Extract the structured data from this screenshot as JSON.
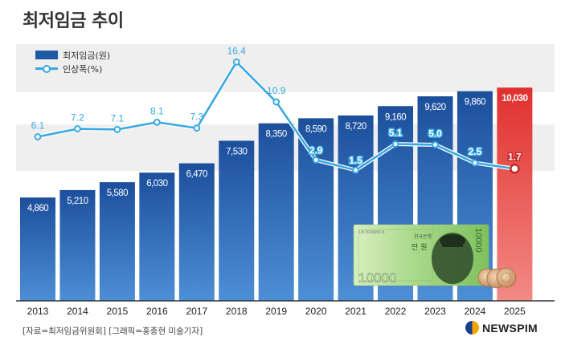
{
  "title": "최저임금 추이",
  "legend": {
    "bar_label": "최저임금(원)",
    "line_label": "인상폭(%)"
  },
  "source": "[자료=최저임금위원회] [그래픽=홍종현 미술기자]",
  "logo_text": "NEWSPIM",
  "banknote": {
    "denomination": "10000",
    "label": "만 원",
    "issuer": "한국은행",
    "serial": "LB 0000000 A"
  },
  "colors": {
    "bar": "#1f5aa6",
    "bar_highlight": "#e03a36",
    "line": "#39a9e0",
    "band": "#efefef"
  },
  "chart_data": {
    "type": "bar",
    "categories": [
      "2013",
      "2014",
      "2015",
      "2016",
      "2017",
      "2018",
      "2019",
      "2020",
      "2021",
      "2022",
      "2023",
      "2024",
      "2025"
    ],
    "series": [
      {
        "name": "최저임금(원)",
        "type": "bar",
        "values": [
          4860,
          5210,
          5580,
          6030,
          6470,
          7530,
          8350,
          8590,
          8720,
          9160,
          9620,
          9860,
          10030
        ],
        "labels": [
          "4,860",
          "5,210",
          "5,580",
          "6,030",
          "6,470",
          "7,530",
          "8,350",
          "8,590",
          "8,720",
          "9,160",
          "9,620",
          "9,860",
          "10,030"
        ]
      },
      {
        "name": "인상폭(%)",
        "type": "line",
        "values": [
          6.1,
          7.2,
          7.1,
          8.1,
          7.3,
          16.4,
          10.9,
          2.9,
          1.5,
          5.1,
          5.0,
          2.5,
          1.7
        ],
        "labels": [
          "6.1",
          "7.2",
          "7.1",
          "8.1",
          "7.3",
          "16.4",
          "10.9",
          "2.9",
          "1.5",
          "5.1",
          "5.0",
          "2.5",
          "1.7"
        ]
      }
    ],
    "highlight_category": "2025",
    "grid": false
  }
}
